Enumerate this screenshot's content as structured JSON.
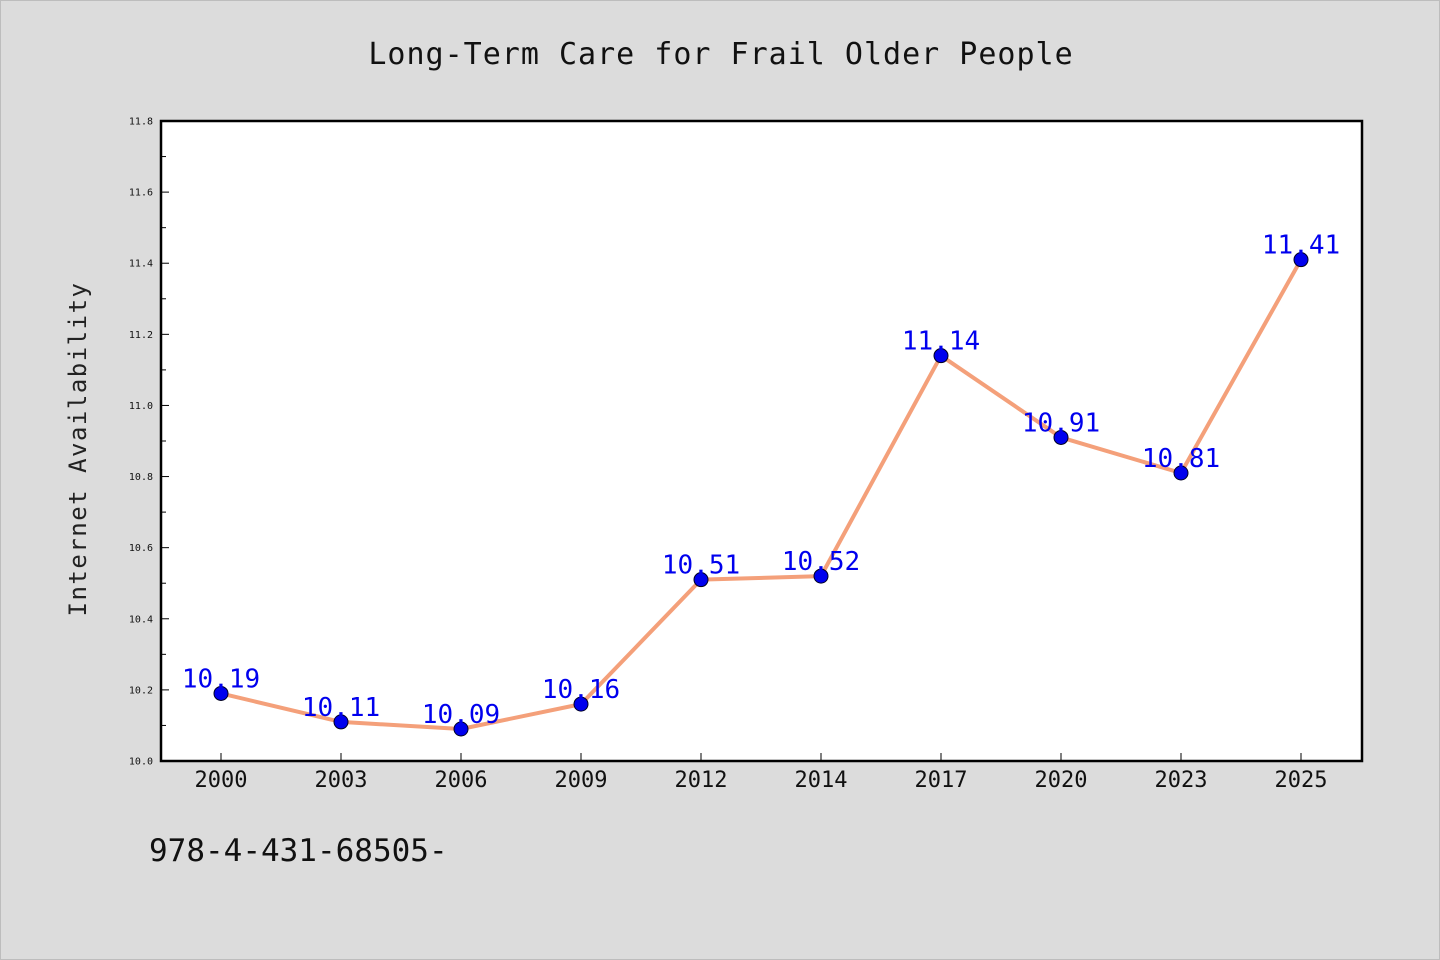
{
  "chart_data": {
    "type": "line",
    "title": "Long-Term Care for Frail Older People",
    "xlabel": "",
    "ylabel": "Internet Availability",
    "categories": [
      "2000",
      "2003",
      "2006",
      "2009",
      "2012",
      "2014",
      "2017",
      "2020",
      "2023",
      "2025"
    ],
    "series": [
      {
        "values": [
          10.19,
          10.11,
          10.09,
          10.16,
          10.51,
          10.52,
          11.14,
          10.91,
          10.81,
          11.41
        ]
      }
    ],
    "data_labels": [
      "10.19",
      "10.11",
      "10.09",
      "10.16",
      "10.51",
      "10.52",
      "11.14",
      "10.91",
      "10.81",
      "11.41"
    ],
    "ylim": [
      10.0,
      11.8
    ],
    "yticks": [
      "10.0",
      "10.2",
      "10.4",
      "10.6",
      "10.8",
      "11.0",
      "11.2",
      "11.4",
      "11.6",
      "11.8"
    ],
    "grid": false,
    "legend": "none",
    "colors": {
      "line": "#f4a07a",
      "marker": "#0000ee",
      "label": "#0000ee",
      "background": "#dcdcdc",
      "plot_background": "#ffffff"
    }
  },
  "footer": {
    "code": "978-4-431-68505-"
  }
}
